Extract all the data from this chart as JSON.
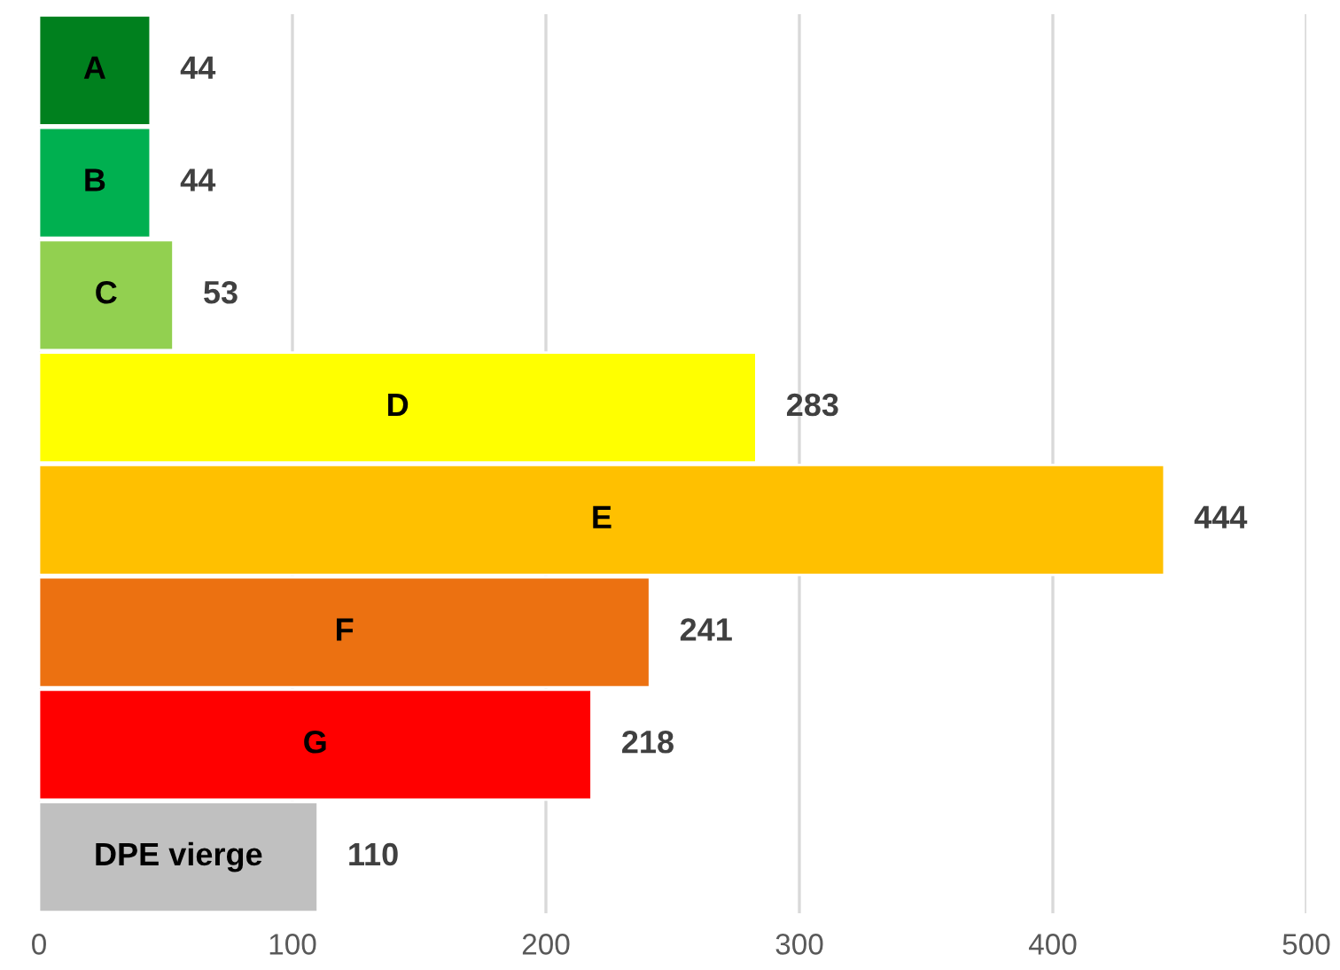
{
  "chart_data": {
    "type": "bar",
    "orientation": "horizontal",
    "categories": [
      "A",
      "B",
      "C",
      "D",
      "E",
      "F",
      "G",
      "DPE vierge"
    ],
    "values": [
      44,
      44,
      53,
      283,
      444,
      241,
      218,
      110
    ],
    "colors": [
      "#00801e",
      "#00b050",
      "#92d050",
      "#ffff00",
      "#ffc000",
      "#ec7111",
      "#ff0000",
      "#c0c0c0"
    ],
    "xlim": [
      0,
      500
    ],
    "xticks": [
      0,
      100,
      200,
      300,
      400,
      500
    ],
    "grid": "x",
    "data_labels": true
  }
}
